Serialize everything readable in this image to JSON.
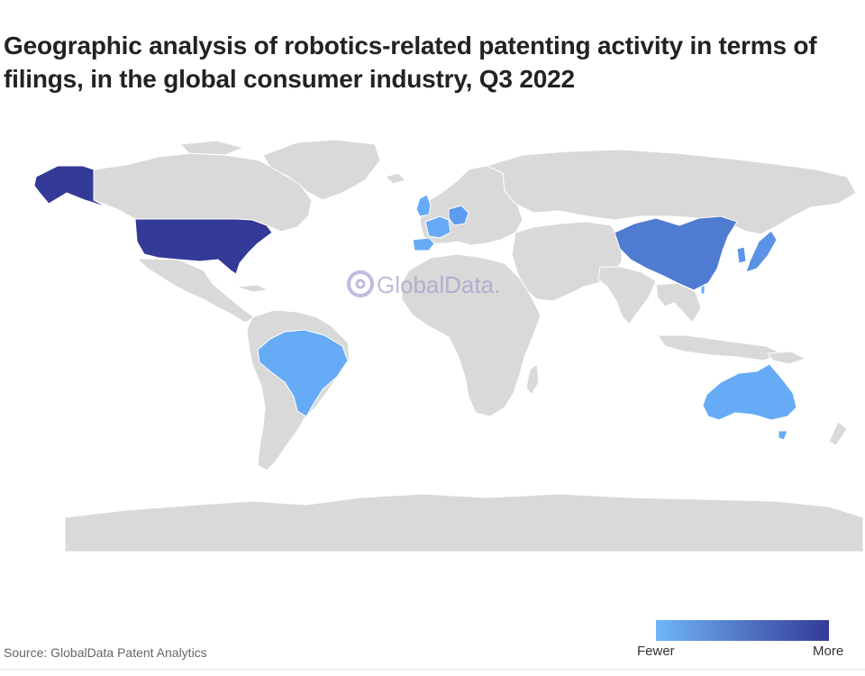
{
  "title": "Geographic analysis of robotics-related patenting activity in terms of filings, in the global consumer industry, Q3 2022",
  "watermark": "GlobalData.",
  "source": "Source: GlobalData Patent Analytics",
  "legend": {
    "low_label": "Fewer",
    "high_label": "More",
    "low_color": "#6fb5f5",
    "high_color": "#333a97"
  },
  "colors": {
    "land": "#d9d9d9",
    "border": "#ffffff"
  },
  "map_data": {
    "type": "choropleth",
    "scale": "ordinal",
    "regions": [
      {
        "name": "United States",
        "level": "highest",
        "color": "#333a97"
      },
      {
        "name": "China",
        "level": "high",
        "color": "#4f7bd1"
      },
      {
        "name": "Japan",
        "level": "medium",
        "color": "#5b93e6"
      },
      {
        "name": "South Korea",
        "level": "medium",
        "color": "#5b93e6"
      },
      {
        "name": "Germany",
        "level": "medium",
        "color": "#5f9cef"
      },
      {
        "name": "France",
        "level": "low",
        "color": "#66abf6"
      },
      {
        "name": "United Kingdom",
        "level": "low",
        "color": "#66abf6"
      },
      {
        "name": "Spain",
        "level": "low",
        "color": "#66abf6"
      },
      {
        "name": "Brazil",
        "level": "low",
        "color": "#66abf6"
      },
      {
        "name": "Australia",
        "level": "low",
        "color": "#66abf6"
      },
      {
        "name": "Taiwan",
        "level": "low",
        "color": "#66abf6"
      }
    ]
  }
}
